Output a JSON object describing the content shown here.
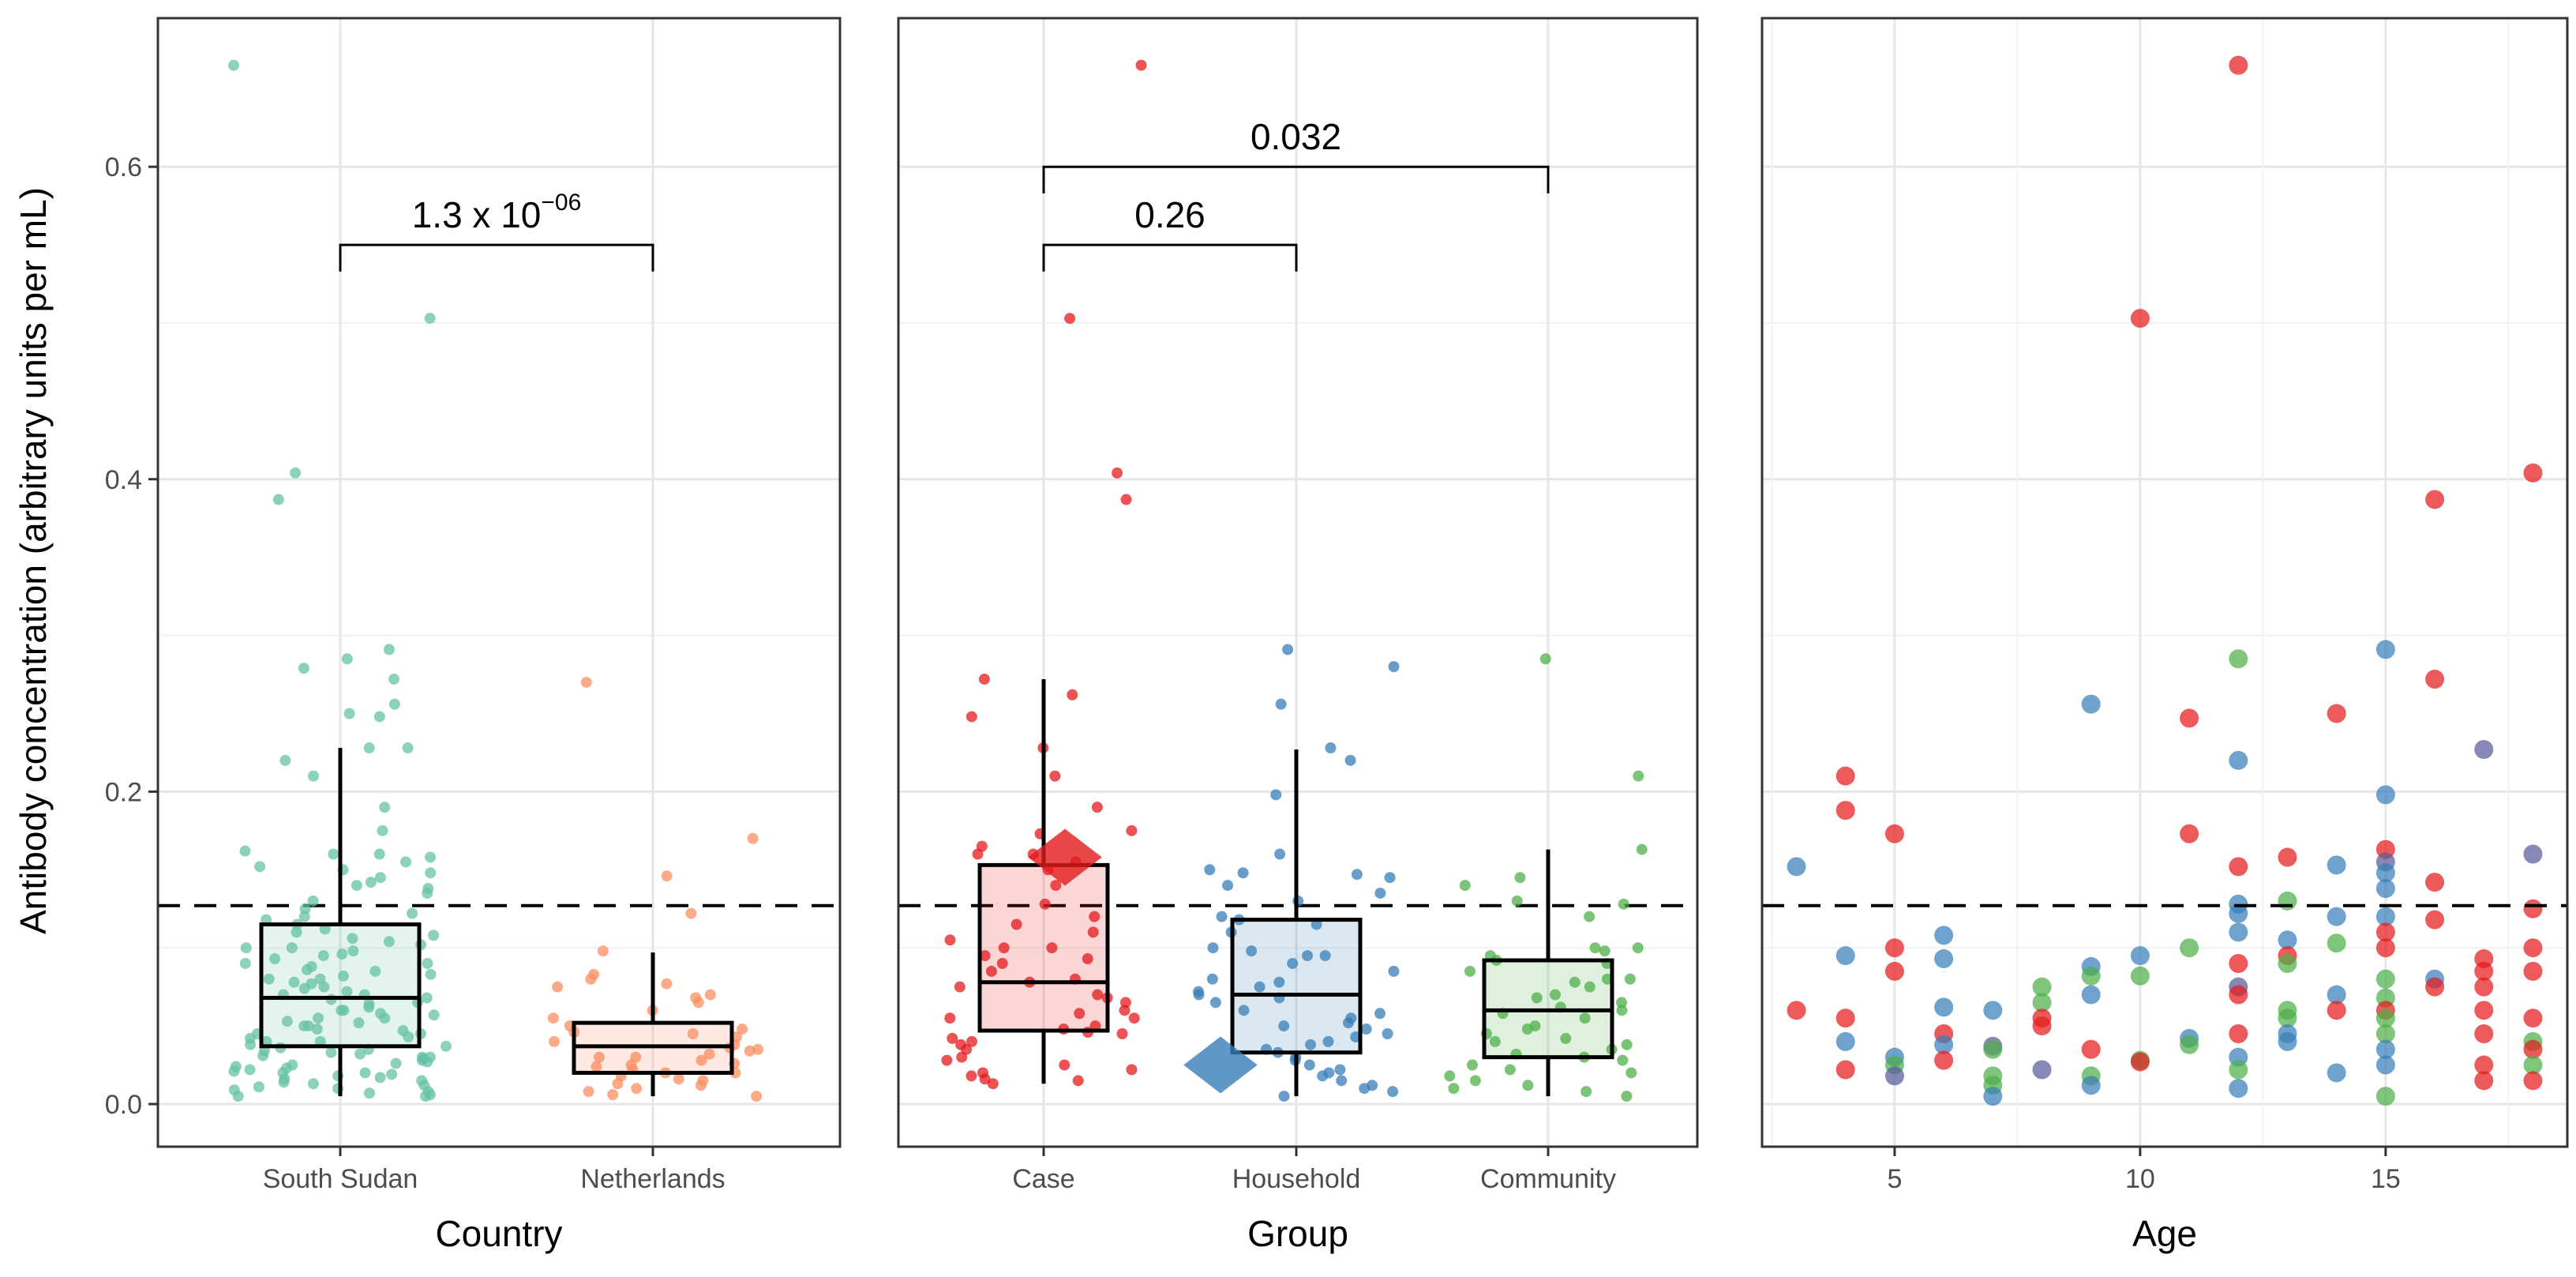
{
  "chart_data": [
    {
      "type": "box+jitter",
      "xlabel": "Country",
      "ylabel": "Antibody concentration (arbitrary units per mL)",
      "ylim": [
        -0.03,
        0.7
      ],
      "yticks": [
        "0.0",
        "0.2",
        "0.4",
        "0.6"
      ],
      "threshold": 0.127,
      "categories": [
        "South Sudan",
        "Netherlands"
      ],
      "colors": [
        "#66c2a5",
        "#fc8d62"
      ],
      "boxes": [
        {
          "q1": 0.037,
          "median": 0.068,
          "q3": 0.115,
          "low": 0.005,
          "high": 0.228
        },
        {
          "q1": 0.02,
          "median": 0.037,
          "q3": 0.052,
          "low": 0.005,
          "high": 0.097
        }
      ],
      "points": [
        [
          0.665,
          0.503,
          0.404,
          0.387,
          0.291,
          0.285,
          0.279,
          0.272,
          0.256,
          0.25,
          0.248,
          0.228,
          0.228,
          0.22,
          0.21,
          0.19,
          0.175,
          0.162,
          0.16,
          0.16,
          0.158,
          0.155,
          0.152,
          0.15,
          0.148,
          0.145,
          0.142,
          0.14,
          0.138,
          0.135,
          0.13,
          0.125,
          0.122,
          0.12,
          0.118,
          0.115,
          0.112,
          0.11,
          0.108,
          0.106,
          0.104,
          0.102,
          0.1,
          0.1,
          0.098,
          0.096,
          0.095,
          0.093,
          0.09,
          0.09,
          0.088,
          0.086,
          0.085,
          0.083,
          0.082,
          0.08,
          0.08,
          0.078,
          0.077,
          0.075,
          0.074,
          0.072,
          0.07,
          0.07,
          0.068,
          0.067,
          0.065,
          0.064,
          0.062,
          0.06,
          0.06,
          0.058,
          0.057,
          0.055,
          0.055,
          0.053,
          0.052,
          0.05,
          0.05,
          0.048,
          0.047,
          0.045,
          0.045,
          0.043,
          0.042,
          0.04,
          0.04,
          0.038,
          0.037,
          0.036,
          0.035,
          0.034,
          0.033,
          0.032,
          0.031,
          0.03,
          0.03,
          0.029,
          0.028,
          0.027,
          0.026,
          0.025,
          0.024,
          0.023,
          0.022,
          0.021,
          0.02,
          0.02,
          0.019,
          0.018,
          0.017,
          0.016,
          0.015,
          0.014,
          0.013,
          0.012,
          0.011,
          0.01,
          0.009,
          0.008,
          0.007,
          0.006,
          0.005,
          0.005
        ],
        [
          0.27,
          0.17,
          0.146,
          0.122,
          0.098,
          0.083,
          0.08,
          0.077,
          0.075,
          0.07,
          0.068,
          0.065,
          0.06,
          0.055,
          0.05,
          0.048,
          0.046,
          0.045,
          0.043,
          0.04,
          0.038,
          0.036,
          0.035,
          0.034,
          0.032,
          0.03,
          0.03,
          0.028,
          0.026,
          0.025,
          0.024,
          0.022,
          0.02,
          0.02,
          0.018,
          0.016,
          0.015,
          0.013,
          0.012,
          0.01,
          0.008,
          0.006,
          0.005
        ]
      ],
      "comparisons": [
        {
          "from": 0,
          "to": 1,
          "label_base": "1.3 x 10",
          "label_exp": "−06",
          "y": 0.55
        }
      ]
    },
    {
      "type": "box+jitter",
      "xlabel": "Group",
      "ylim": [
        -0.03,
        0.7
      ],
      "threshold": 0.127,
      "categories": [
        "Case",
        "Household",
        "Community"
      ],
      "colors": [
        "#e41a1c",
        "#377eb8",
        "#4daf4a"
      ],
      "boxes": [
        {
          "q1": 0.047,
          "median": 0.078,
          "q3": 0.153,
          "low": 0.013,
          "high": 0.272,
          "highlight": 0.158
        },
        {
          "q1": 0.033,
          "median": 0.07,
          "q3": 0.118,
          "low": 0.005,
          "high": 0.227,
          "highlight": 0.025
        },
        {
          "q1": 0.03,
          "median": 0.06,
          "q3": 0.092,
          "low": 0.005,
          "high": 0.163
        }
      ],
      "points": [
        [
          0.665,
          0.503,
          0.404,
          0.387,
          0.272,
          0.262,
          0.248,
          0.228,
          0.21,
          0.19,
          0.175,
          0.173,
          0.165,
          0.16,
          0.16,
          0.155,
          0.15,
          0.14,
          0.128,
          0.12,
          0.115,
          0.11,
          0.105,
          0.1,
          0.1,
          0.095,
          0.093,
          0.09,
          0.085,
          0.08,
          0.078,
          0.075,
          0.07,
          0.068,
          0.065,
          0.06,
          0.058,
          0.055,
          0.055,
          0.05,
          0.048,
          0.046,
          0.045,
          0.042,
          0.04,
          0.038,
          0.035,
          0.03,
          0.028,
          0.025,
          0.022,
          0.02,
          0.018,
          0.016,
          0.015,
          0.013
        ],
        [
          0.291,
          0.28,
          0.256,
          0.228,
          0.22,
          0.198,
          0.16,
          0.15,
          0.148,
          0.147,
          0.145,
          0.14,
          0.135,
          0.13,
          0.12,
          0.118,
          0.115,
          0.11,
          0.1,
          0.098,
          0.095,
          0.095,
          0.09,
          0.085,
          0.08,
          0.078,
          0.075,
          0.072,
          0.07,
          0.068,
          0.065,
          0.06,
          0.058,
          0.055,
          0.052,
          0.05,
          0.048,
          0.045,
          0.043,
          0.04,
          0.038,
          0.035,
          0.033,
          0.03,
          0.028,
          0.025,
          0.022,
          0.02,
          0.018,
          0.015,
          0.012,
          0.01,
          0.008,
          0.005
        ],
        [
          0.285,
          0.21,
          0.163,
          0.145,
          0.14,
          0.13,
          0.128,
          0.12,
          0.1,
          0.1,
          0.098,
          0.095,
          0.092,
          0.09,
          0.085,
          0.08,
          0.08,
          0.078,
          0.075,
          0.07,
          0.068,
          0.065,
          0.062,
          0.06,
          0.058,
          0.055,
          0.05,
          0.048,
          0.045,
          0.042,
          0.04,
          0.038,
          0.035,
          0.032,
          0.03,
          0.028,
          0.025,
          0.022,
          0.02,
          0.018,
          0.015,
          0.012,
          0.01,
          0.008,
          0.005
        ]
      ],
      "comparisons": [
        {
          "from": 0,
          "to": 1,
          "label": "0.26",
          "y": 0.55
        },
        {
          "from": 0,
          "to": 2,
          "label": "0.032",
          "y": 0.6
        }
      ]
    },
    {
      "type": "scatter",
      "xlabel": "Age",
      "xlim": [
        2.3,
        18.7
      ],
      "xticks": [
        "5",
        "10",
        "15"
      ],
      "ylim": [
        -0.03,
        0.7
      ],
      "threshold": 0.127,
      "group_colors": {
        "C": "#e41a1c",
        "H": "#377eb8",
        "M": "#4daf4a",
        "P": "#5a5a9a"
      },
      "points": [
        [
          3,
          0.152,
          "H"
        ],
        [
          3,
          0.06,
          "C"
        ],
        [
          4,
          0.21,
          "C"
        ],
        [
          4,
          0.188,
          "C"
        ],
        [
          4,
          0.095,
          "H"
        ],
        [
          4,
          0.055,
          "C"
        ],
        [
          4,
          0.04,
          "H"
        ],
        [
          4,
          0.022,
          "C"
        ],
        [
          5,
          0.173,
          "C"
        ],
        [
          5,
          0.1,
          "C"
        ],
        [
          5,
          0.085,
          "C"
        ],
        [
          5,
          0.03,
          "H"
        ],
        [
          5,
          0.025,
          "M"
        ],
        [
          5,
          0.018,
          "P"
        ],
        [
          6,
          0.108,
          "H"
        ],
        [
          6,
          0.093,
          "H"
        ],
        [
          6,
          0.062,
          "H"
        ],
        [
          6,
          0.045,
          "C"
        ],
        [
          6,
          0.038,
          "H"
        ],
        [
          6,
          0.028,
          "C"
        ],
        [
          7,
          0.06,
          "H"
        ],
        [
          7,
          0.037,
          "P"
        ],
        [
          7,
          0.035,
          "M"
        ],
        [
          7,
          0.018,
          "M"
        ],
        [
          7,
          0.012,
          "M"
        ],
        [
          7,
          0.005,
          "H"
        ],
        [
          8,
          0.075,
          "M"
        ],
        [
          8,
          0.065,
          "M"
        ],
        [
          8,
          0.055,
          "C"
        ],
        [
          8,
          0.05,
          "C"
        ],
        [
          8,
          0.022,
          "P"
        ],
        [
          9,
          0.256,
          "H"
        ],
        [
          9,
          0.088,
          "H"
        ],
        [
          9,
          0.082,
          "M"
        ],
        [
          9,
          0.07,
          "H"
        ],
        [
          9,
          0.035,
          "C"
        ],
        [
          9,
          0.018,
          "M"
        ],
        [
          9,
          0.012,
          "H"
        ],
        [
          10,
          0.503,
          "C"
        ],
        [
          10,
          0.095,
          "H"
        ],
        [
          10,
          0.082,
          "M"
        ],
        [
          10,
          0.028,
          "M"
        ],
        [
          10,
          0.027,
          "C"
        ],
        [
          11,
          0.247,
          "C"
        ],
        [
          11,
          0.173,
          "C"
        ],
        [
          11,
          0.1,
          "M"
        ],
        [
          11,
          0.042,
          "H"
        ],
        [
          11,
          0.038,
          "M"
        ],
        [
          12,
          0.665,
          "C"
        ],
        [
          12,
          0.285,
          "M"
        ],
        [
          12,
          0.22,
          "H"
        ],
        [
          12,
          0.152,
          "C"
        ],
        [
          12,
          0.128,
          "H"
        ],
        [
          12,
          0.122,
          "H"
        ],
        [
          12,
          0.11,
          "H"
        ],
        [
          12,
          0.09,
          "C"
        ],
        [
          12,
          0.075,
          "P"
        ],
        [
          12,
          0.07,
          "C"
        ],
        [
          12,
          0.045,
          "C"
        ],
        [
          12,
          0.03,
          "H"
        ],
        [
          12,
          0.022,
          "M"
        ],
        [
          12,
          0.01,
          "H"
        ],
        [
          13,
          0.158,
          "C"
        ],
        [
          13,
          0.13,
          "M"
        ],
        [
          13,
          0.105,
          "H"
        ],
        [
          13,
          0.095,
          "C"
        ],
        [
          13,
          0.09,
          "M"
        ],
        [
          13,
          0.06,
          "M"
        ],
        [
          13,
          0.055,
          "M"
        ],
        [
          13,
          0.045,
          "H"
        ],
        [
          13,
          0.04,
          "H"
        ],
        [
          14,
          0.25,
          "C"
        ],
        [
          14,
          0.153,
          "H"
        ],
        [
          14,
          0.12,
          "H"
        ],
        [
          14,
          0.103,
          "M"
        ],
        [
          14,
          0.07,
          "H"
        ],
        [
          14,
          0.06,
          "C"
        ],
        [
          14,
          0.02,
          "H"
        ],
        [
          15,
          0.291,
          "H"
        ],
        [
          15,
          0.198,
          "H"
        ],
        [
          15,
          0.163,
          "C"
        ],
        [
          15,
          0.155,
          "P"
        ],
        [
          15,
          0.148,
          "H"
        ],
        [
          15,
          0.138,
          "H"
        ],
        [
          15,
          0.12,
          "H"
        ],
        [
          15,
          0.11,
          "C"
        ],
        [
          15,
          0.1,
          "C"
        ],
        [
          15,
          0.08,
          "M"
        ],
        [
          15,
          0.068,
          "M"
        ],
        [
          15,
          0.06,
          "C"
        ],
        [
          15,
          0.055,
          "M"
        ],
        [
          15,
          0.045,
          "M"
        ],
        [
          15,
          0.035,
          "H"
        ],
        [
          15,
          0.025,
          "H"
        ],
        [
          15,
          0.005,
          "M"
        ],
        [
          16,
          0.387,
          "C"
        ],
        [
          16,
          0.272,
          "C"
        ],
        [
          16,
          0.142,
          "C"
        ],
        [
          16,
          0.118,
          "C"
        ],
        [
          16,
          0.08,
          "H"
        ],
        [
          16,
          0.075,
          "C"
        ],
        [
          17,
          0.227,
          "P"
        ],
        [
          17,
          0.093,
          "C"
        ],
        [
          17,
          0.085,
          "C"
        ],
        [
          17,
          0.075,
          "C"
        ],
        [
          17,
          0.06,
          "C"
        ],
        [
          17,
          0.045,
          "C"
        ],
        [
          17,
          0.025,
          "C"
        ],
        [
          17,
          0.015,
          "C"
        ],
        [
          18,
          0.404,
          "C"
        ],
        [
          18,
          0.16,
          "P"
        ],
        [
          18,
          0.125,
          "C"
        ],
        [
          18,
          0.1,
          "C"
        ],
        [
          18,
          0.085,
          "C"
        ],
        [
          18,
          0.055,
          "C"
        ],
        [
          18,
          0.04,
          "M"
        ],
        [
          18,
          0.035,
          "C"
        ],
        [
          18,
          0.025,
          "M"
        ],
        [
          18,
          0.015,
          "C"
        ]
      ]
    }
  ]
}
